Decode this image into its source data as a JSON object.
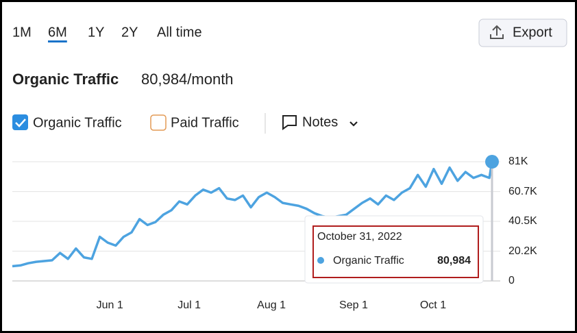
{
  "tabs": [
    "1M",
    "6M",
    "1Y",
    "2Y",
    "All time"
  ],
  "active_tab": "6M",
  "export": "Export",
  "header": {
    "title": "Organic Traffic",
    "value": "80,984/month"
  },
  "toggles": {
    "paid": "Paid Traffic",
    "notes": "Notes"
  },
  "chart_data": {
    "type": "line",
    "x": [
      "2022-05-03",
      "2022-05-06",
      "2022-05-09",
      "2022-05-12",
      "2022-05-15",
      "2022-05-18",
      "2022-05-21",
      "2022-05-24",
      "2022-05-27",
      "2022-05-30",
      "2022-06-02",
      "2022-06-05",
      "2022-06-08",
      "2022-06-11",
      "2022-06-14",
      "2022-06-17",
      "2022-06-20",
      "2022-06-23",
      "2022-06-26",
      "2022-06-29",
      "2022-07-02",
      "2022-07-05",
      "2022-07-08",
      "2022-07-11",
      "2022-07-14",
      "2022-07-17",
      "2022-07-20",
      "2022-07-23",
      "2022-07-26",
      "2022-07-29",
      "2022-08-01",
      "2022-08-04",
      "2022-08-07",
      "2022-08-10",
      "2022-08-13",
      "2022-08-16",
      "2022-08-19",
      "2022-08-22",
      "2022-08-25",
      "2022-08-28",
      "2022-08-31",
      "2022-09-03",
      "2022-09-06",
      "2022-09-09",
      "2022-09-12",
      "2022-09-15",
      "2022-09-18",
      "2022-09-21",
      "2022-09-24",
      "2022-09-27",
      "2022-09-30",
      "2022-10-03",
      "2022-10-06",
      "2022-10-09",
      "2022-10-12",
      "2022-10-15",
      "2022-10-18",
      "2022-10-21",
      "2022-10-24",
      "2022-10-27",
      "2022-10-30",
      "2022-10-31"
    ],
    "series": [
      {
        "name": "Organic Traffic",
        "color": "#4da3e0",
        "values": [
          10000,
          10500,
          12000,
          13000,
          13500,
          14000,
          19000,
          15000,
          22000,
          16000,
          15000,
          30000,
          26000,
          24000,
          30000,
          33000,
          42000,
          38000,
          40000,
          45000,
          48000,
          54000,
          52000,
          58000,
          62000,
          60000,
          63000,
          56000,
          55000,
          58000,
          50000,
          57000,
          60000,
          57000,
          53000,
          52000,
          51000,
          49000,
          46000,
          44000,
          43000,
          44000,
          45000,
          49000,
          53000,
          56000,
          52000,
          58000,
          55000,
          60000,
          63000,
          72000,
          64000,
          76000,
          66000,
          77000,
          68000,
          74000,
          70000,
          72000,
          70000,
          80984
        ]
      }
    ],
    "xlim": [
      "2022-05-03",
      "2022-10-31"
    ],
    "xticks": [
      {
        "value": "2022-06-01",
        "label": "Jun 1"
      },
      {
        "value": "2022-07-01",
        "label": "Jul 1"
      },
      {
        "value": "2022-08-01",
        "label": "Aug 1"
      },
      {
        "value": "2022-09-01",
        "label": "Sep 1"
      },
      {
        "value": "2022-10-01",
        "label": "Oct 1"
      }
    ],
    "ylim": [
      0,
      81000
    ],
    "yticks": [
      0,
      {
        "value": 20200,
        "label": "20.2K"
      },
      {
        "value": 40500,
        "label": "40.5K"
      },
      {
        "value": 60700,
        "label": "60.7K"
      },
      {
        "value": 81000,
        "label": "81K"
      }
    ],
    "grid": true,
    "tooltip": {
      "date": "October 31, 2022",
      "value": {
        "value": 80984,
        "label": "80,984"
      }
    }
  }
}
